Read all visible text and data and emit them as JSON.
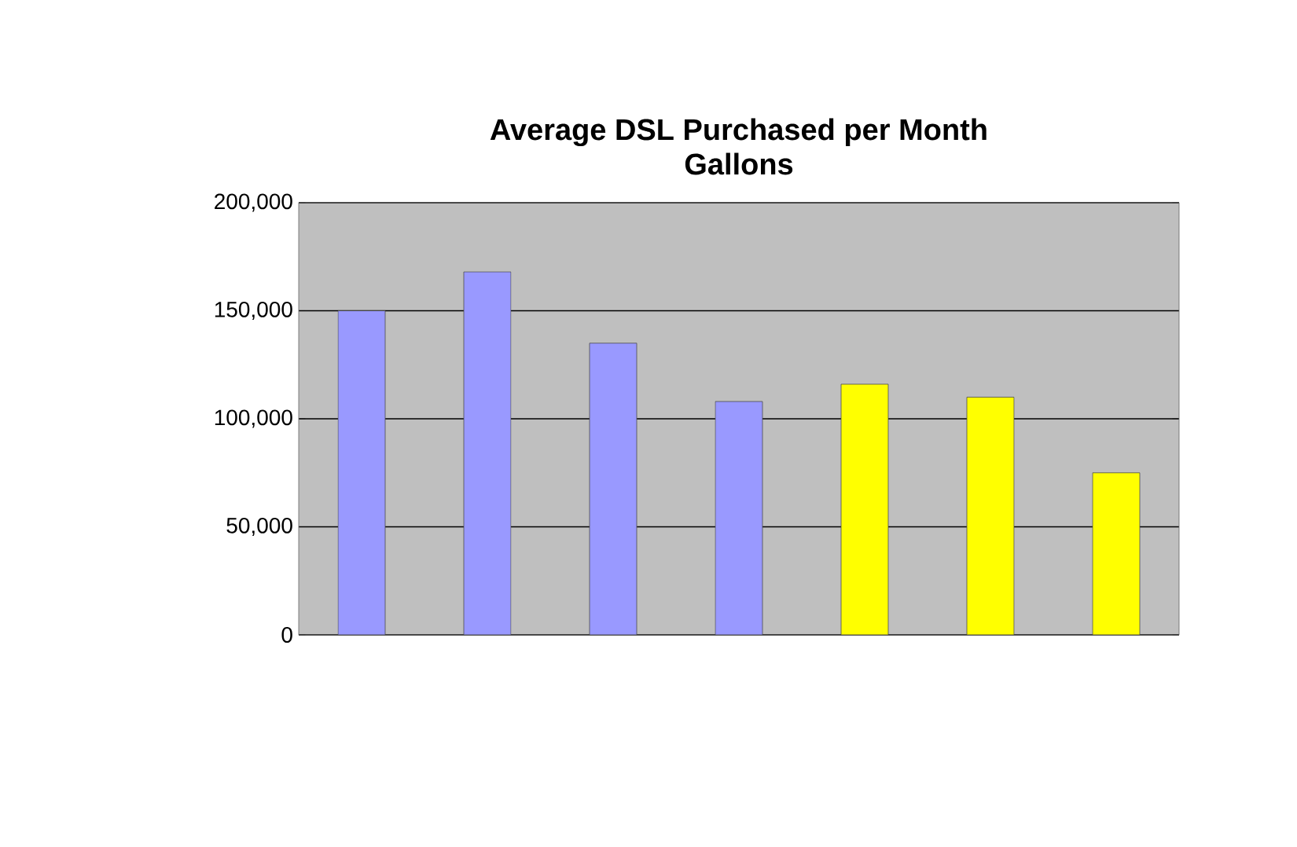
{
  "chart_data": {
    "type": "bar",
    "title": "Average DSL Purchased per Month\nGallons",
    "categories": [
      null,
      null,
      null,
      null,
      null,
      null,
      null
    ],
    "values": [
      150000,
      168000,
      135000,
      108000,
      116000,
      110000,
      75000
    ],
    "colors": [
      "#9999ff",
      "#9999ff",
      "#9999ff",
      "#9999ff",
      "#ffff00",
      "#ffff00",
      "#ffff00"
    ],
    "ylim": [
      0,
      200000
    ],
    "yticks": [
      {
        "value": 0,
        "label": "0"
      },
      {
        "value": 50000,
        "label": "50,000"
      },
      {
        "value": 100000,
        "label": "100,000"
      },
      {
        "value": 150000,
        "label": "150,000"
      },
      {
        "value": 200000,
        "label": "200,000"
      }
    ],
    "grid": "y"
  }
}
